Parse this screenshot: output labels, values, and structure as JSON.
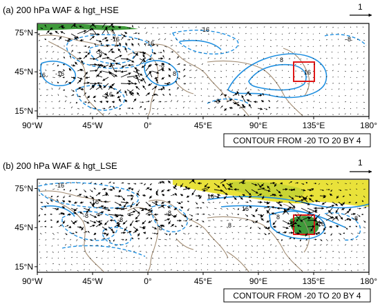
{
  "colors": {
    "contour": "#1f8fe0",
    "coast": "#a08a70",
    "positive_fill_green": "#3f9a3a",
    "positive_fill_yellow": "#e9e23a",
    "box": "#e01616",
    "vector": "#000000"
  },
  "reference_vector_label": "1",
  "contour_note": "CONTOUR FROM -20 TO 20 BY 4",
  "panels": [
    {
      "title": "(a) 200 hPa  WAF & hgt_HSE",
      "contour_labels": [
        "-16",
        "-16",
        "-16",
        "-8",
        "-8",
        "-8",
        "-16",
        "-16",
        "8",
        "16",
        "8",
        "16",
        "-8"
      ]
    },
    {
      "title": "(b) 200 hPa  WAF & hgt_LSE",
      "contour_labels": [
        "-16",
        "-16",
        "-8",
        "-8",
        "-8",
        "8",
        "16",
        "16",
        "8",
        "16",
        "-8",
        "8"
      ]
    }
  ],
  "axes": {
    "x_ticks": [
      "90°W",
      "45°W",
      "0°",
      "45°E",
      "90°E",
      "135°E",
      "180°"
    ],
    "y_ticks": [
      "75°N",
      "45°N",
      "15°N"
    ]
  }
}
